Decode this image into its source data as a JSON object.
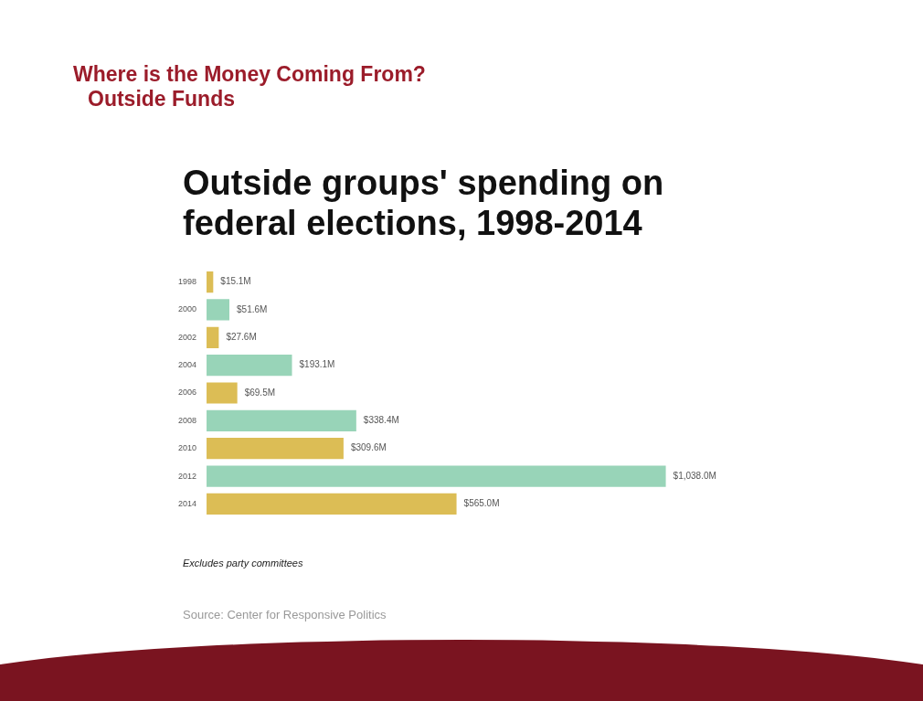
{
  "chart_data": {
    "type": "bar",
    "orientation": "horizontal",
    "title": "Outside groups' spending on federal elections, 1998-2014",
    "annotations": [
      "Where is the Money Coming From?",
      "Outside Funds",
      "Excludes party committees",
      "Source: Center for Responsive Politics"
    ],
    "categories": [
      "1998",
      "2000",
      "2002",
      "2004",
      "2006",
      "2008",
      "2010",
      "2012",
      "2014"
    ],
    "values": [
      15.1,
      51.6,
      27.6,
      193.1,
      69.5,
      338.4,
      309.6,
      1038.0,
      565.0
    ],
    "value_labels": [
      "$15.1M",
      "$51.6M",
      "$27.6M",
      "$193.1M",
      "$69.5M",
      "$338.4M",
      "$309.6M",
      "$1,038.0M",
      "$565.0M"
    ],
    "colors": [
      "#dcbd55",
      "#98d4b8",
      "#dcbd55",
      "#98d4b8",
      "#dcbd55",
      "#98d4b8",
      "#dcbd55",
      "#98d4b8",
      "#dcbd55"
    ],
    "legend": false
  }
}
